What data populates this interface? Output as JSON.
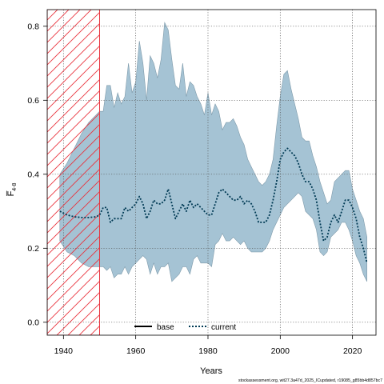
{
  "chart_data": {
    "type": "line",
    "xlabel": "Years",
    "ylabel": "F̅ 4-8",
    "ylabel_main": "F̅",
    "ylabel_sub": "4-8",
    "xlim": [
      1935.5,
      2026.5
    ],
    "ylim": [
      -0.035,
      0.845
    ],
    "xticks": [
      1940,
      1960,
      1980,
      2000,
      2020
    ],
    "xtick_labels": [
      "1940",
      "1960",
      "1980",
      "2000",
      "2020"
    ],
    "yticks": [
      0.0,
      0.2,
      0.4,
      0.6,
      0.8
    ],
    "ytick_labels": [
      "0.0",
      "0.2",
      "0.4",
      "0.6",
      "0.8"
    ],
    "grid": true,
    "legend_position": "bottom-center",
    "hatched_region": {
      "x_start": 1935.5,
      "x_end": 1950,
      "color": "#e8323c"
    },
    "band": {
      "color": "#a5c3d4",
      "x": [
        1939,
        1941,
        1943,
        1945,
        1947,
        1949,
        1950,
        1951,
        1952,
        1953,
        1954,
        1955,
        1956,
        1957,
        1958,
        1959,
        1960,
        1961,
        1962,
        1963,
        1964,
        1965,
        1966,
        1967,
        1968,
        1969,
        1970,
        1971,
        1972,
        1973,
        1974,
        1975,
        1976,
        1977,
        1978,
        1979,
        1980,
        1981,
        1982,
        1983,
        1984,
        1985,
        1986,
        1987,
        1988,
        1989,
        1990,
        1991,
        1992,
        1993,
        1994,
        1995,
        1996,
        1997,
        1998,
        1999,
        2000,
        2001,
        2002,
        2003,
        2004,
        2005,
        2006,
        2007,
        2008,
        2009,
        2010,
        2011,
        2012,
        2013,
        2014,
        2015,
        2016,
        2017,
        2018,
        2019,
        2020,
        2021,
        2022,
        2023,
        2024
      ],
      "upper": [
        0.4,
        0.43,
        0.47,
        0.51,
        0.54,
        0.56,
        0.57,
        0.57,
        0.64,
        0.64,
        0.58,
        0.62,
        0.59,
        0.61,
        0.7,
        0.62,
        0.65,
        0.76,
        0.7,
        0.6,
        0.72,
        0.7,
        0.66,
        0.71,
        0.81,
        0.79,
        0.71,
        0.64,
        0.63,
        0.7,
        0.61,
        0.65,
        0.64,
        0.61,
        0.59,
        0.56,
        0.62,
        0.56,
        0.59,
        0.57,
        0.52,
        0.54,
        0.54,
        0.55,
        0.53,
        0.5,
        0.48,
        0.44,
        0.42,
        0.4,
        0.38,
        0.37,
        0.38,
        0.4,
        0.44,
        0.53,
        0.61,
        0.67,
        0.68,
        0.63,
        0.59,
        0.55,
        0.5,
        0.49,
        0.49,
        0.45,
        0.42,
        0.38,
        0.35,
        0.32,
        0.33,
        0.38,
        0.39,
        0.4,
        0.41,
        0.41,
        0.36,
        0.33,
        0.3,
        0.28,
        0.23
      ],
      "lower": [
        0.22,
        0.19,
        0.18,
        0.16,
        0.15,
        0.15,
        0.15,
        0.15,
        0.14,
        0.15,
        0.12,
        0.13,
        0.13,
        0.15,
        0.13,
        0.15,
        0.16,
        0.17,
        0.18,
        0.17,
        0.13,
        0.16,
        0.13,
        0.15,
        0.15,
        0.16,
        0.11,
        0.12,
        0.13,
        0.15,
        0.15,
        0.13,
        0.17,
        0.18,
        0.16,
        0.16,
        0.16,
        0.15,
        0.21,
        0.22,
        0.24,
        0.22,
        0.22,
        0.23,
        0.22,
        0.21,
        0.22,
        0.2,
        0.19,
        0.19,
        0.19,
        0.19,
        0.2,
        0.22,
        0.25,
        0.27,
        0.29,
        0.31,
        0.32,
        0.33,
        0.34,
        0.35,
        0.34,
        0.3,
        0.29,
        0.28,
        0.25,
        0.19,
        0.18,
        0.19,
        0.23,
        0.24,
        0.25,
        0.27,
        0.27,
        0.25,
        0.22,
        0.18,
        0.16,
        0.13,
        0.11
      ]
    },
    "series": [
      {
        "name": "base",
        "style": "solid",
        "color": "#000000",
        "x": [
          1939
        ],
        "values": [
          0.3
        ]
      },
      {
        "name": "current",
        "style": "dotted",
        "color": "#003a54",
        "x": [
          1939,
          1941,
          1943,
          1945,
          1947,
          1949,
          1950,
          1951,
          1952,
          1953,
          1954,
          1955,
          1956,
          1957,
          1958,
          1959,
          1960,
          1961,
          1962,
          1963,
          1964,
          1965,
          1966,
          1967,
          1968,
          1969,
          1970,
          1971,
          1972,
          1973,
          1974,
          1975,
          1976,
          1977,
          1978,
          1979,
          1980,
          1981,
          1982,
          1983,
          1984,
          1985,
          1986,
          1987,
          1988,
          1989,
          1990,
          1991,
          1992,
          1993,
          1994,
          1995,
          1996,
          1997,
          1998,
          1999,
          2000,
          2001,
          2002,
          2003,
          2004,
          2005,
          2006,
          2007,
          2008,
          2009,
          2010,
          2011,
          2012,
          2013,
          2014,
          2015,
          2016,
          2017,
          2018,
          2019,
          2020,
          2021,
          2022,
          2023,
          2024
        ],
        "values": [
          0.3,
          0.29,
          0.285,
          0.283,
          0.283,
          0.285,
          0.29,
          0.31,
          0.31,
          0.27,
          0.28,
          0.28,
          0.28,
          0.31,
          0.3,
          0.31,
          0.32,
          0.34,
          0.32,
          0.28,
          0.3,
          0.33,
          0.32,
          0.32,
          0.33,
          0.36,
          0.32,
          0.28,
          0.3,
          0.32,
          0.3,
          0.33,
          0.31,
          0.32,
          0.31,
          0.3,
          0.29,
          0.29,
          0.32,
          0.35,
          0.36,
          0.35,
          0.34,
          0.33,
          0.33,
          0.34,
          0.32,
          0.33,
          0.32,
          0.3,
          0.27,
          0.27,
          0.27,
          0.29,
          0.33,
          0.38,
          0.44,
          0.46,
          0.47,
          0.46,
          0.45,
          0.43,
          0.4,
          0.38,
          0.38,
          0.36,
          0.33,
          0.27,
          0.22,
          0.23,
          0.27,
          0.29,
          0.27,
          0.3,
          0.33,
          0.33,
          0.31,
          0.28,
          0.23,
          0.2,
          0.16
        ]
      }
    ]
  },
  "footnote": "stockassessment.org, wit27.3a47d_2025_ICupdated, r19085_g85bb4d857bc7"
}
